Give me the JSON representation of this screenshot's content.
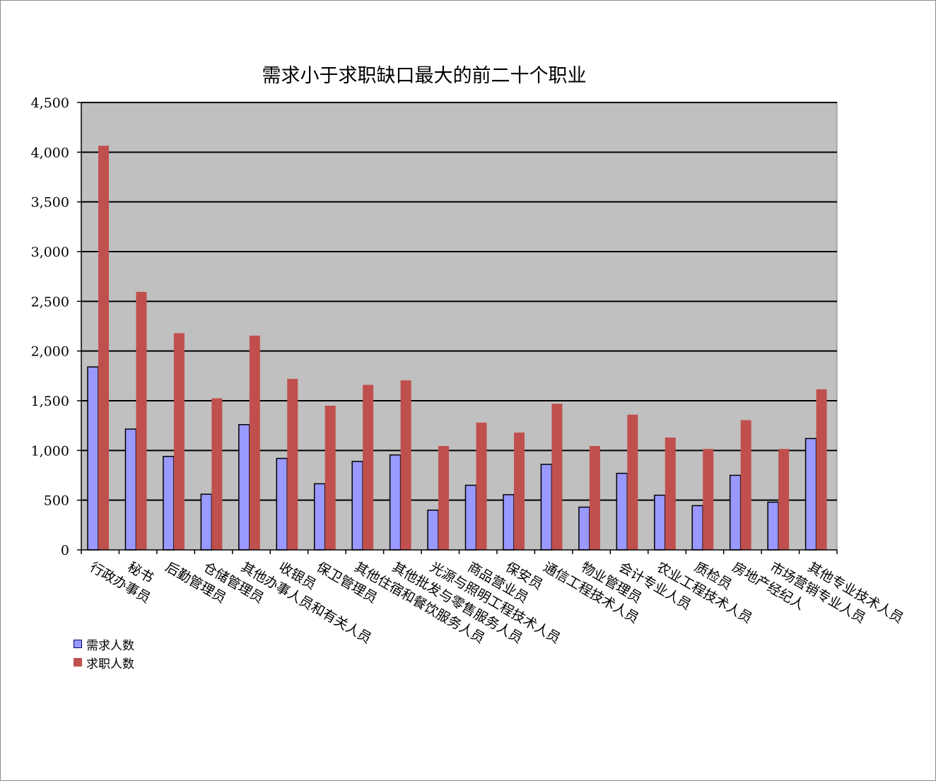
{
  "chart_data": {
    "type": "bar",
    "title": "需求小于求职缺口最大的前二十个职业",
    "categories": [
      "行政办事员",
      "秘书",
      "后勤管理员",
      "仓储管理员",
      "其他办事人员和有关人员",
      "收银员",
      "保卫管理员",
      "其他住宿和餐饮服务人员",
      "其他批发与零售服务人员",
      "光源与照明工程技术人员",
      "商品营业员",
      "保安员",
      "通信工程技术人员",
      "物业管理员",
      "会计专业人员",
      "农业工程技术人员",
      "质检员",
      "房地产经纪人",
      "市场营销专业人员",
      "其他专业技术人员"
    ],
    "series": [
      {
        "name": "需求人数",
        "color": "#9999ff",
        "values": [
          1840,
          1215,
          940,
          560,
          1260,
          920,
          665,
          890,
          955,
          400,
          650,
          555,
          860,
          430,
          770,
          550,
          445,
          750,
          480,
          1120
        ]
      },
      {
        "name": "求职人数",
        "color": "#c0504d",
        "values": [
          4065,
          2595,
          2180,
          1525,
          2155,
          1720,
          1450,
          1660,
          1705,
          1045,
          1280,
          1180,
          1470,
          1045,
          1360,
          1130,
          1015,
          1305,
          1015,
          1615
        ]
      }
    ],
    "ylim": [
      0,
      4500
    ],
    "yticks": [
      0,
      500,
      1000,
      1500,
      2000,
      2500,
      3000,
      3500,
      4000,
      4500
    ],
    "ytick_labels": [
      "0",
      "500",
      "1,000",
      "1,500",
      "2,000",
      "2,500",
      "3,000",
      "3,500",
      "4,000",
      "4,500"
    ],
    "grid": true,
    "plot_background": "#c0c0c0",
    "legend_position": "bottom-left"
  }
}
